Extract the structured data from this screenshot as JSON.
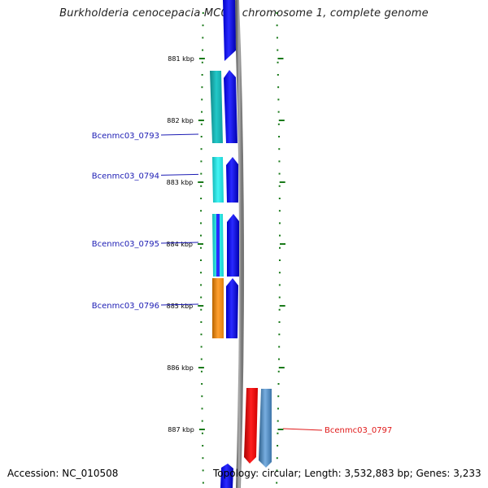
{
  "title": "Burkholderia cenocepacia MC0-3 chromosome 1, complete genome",
  "footer": {
    "accession": "Accession: NC_010508",
    "summary": "Topology: circular; Length: 3,532,883 bp; Genes: 3,233"
  },
  "colors": {
    "label_blue": "#1c1cb4",
    "label_red": "#e01818",
    "tick_green": "#1a7a1a",
    "backbone": "#8a8a8a"
  },
  "ticks": [
    {
      "label": "881 kbp",
      "kbp": 881
    },
    {
      "label": "882 kbp",
      "kbp": 882
    },
    {
      "label": "883 kbp",
      "kbp": 883
    },
    {
      "label": "884 kbp",
      "kbp": 884
    },
    {
      "label": "885 kbp",
      "kbp": 885
    },
    {
      "label": "886 kbp",
      "kbp": 886
    },
    {
      "label": "887 kbp",
      "kbp": 887
    }
  ],
  "genes": [
    {
      "label": "Bcenmc03_0793",
      "start_kbp": 882.7,
      "end_kbp": 881.8,
      "cog_color": "#1bb0b0"
    },
    {
      "label": "Bcenmc03_0794",
      "start_kbp": 883.3,
      "end_kbp": 882.5,
      "cog_color": "#20e0e0"
    },
    {
      "label": "Bcenmc03_0795",
      "start_kbp": 884.5,
      "end_kbp": 883.5,
      "cog_color": "#20e0e0"
    },
    {
      "label": "Bcenmc03_0796",
      "start_kbp": 885.5,
      "end_kbp": 884.5,
      "cog_color": "#f08c10"
    },
    {
      "label": "Bcenmc03_0797",
      "start_kbp": 886.4,
      "end_kbp": 887.6,
      "cog_color": "#e01818"
    }
  ]
}
